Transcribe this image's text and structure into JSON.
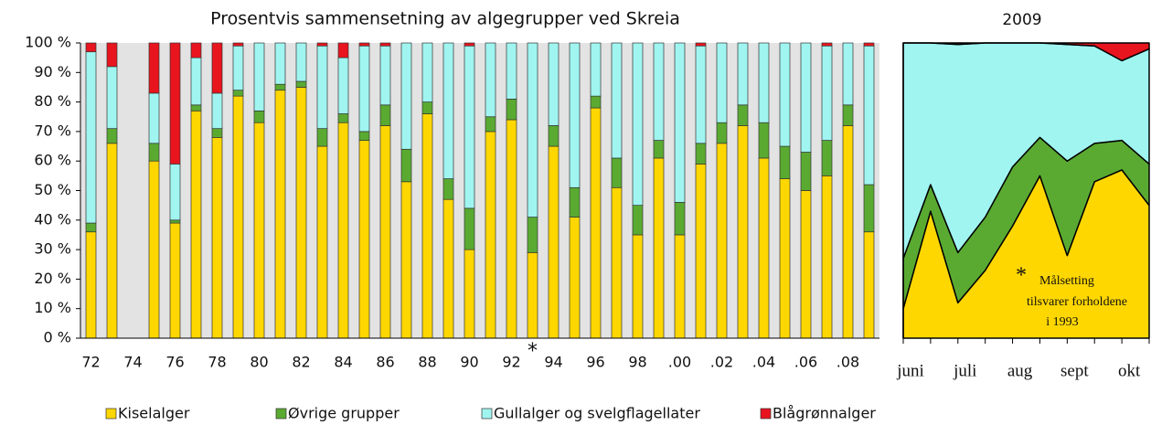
{
  "chart_data": [
    {
      "type": "stacked_bar",
      "title": "Prosentvis sammensetning av algegrupper ved Skreia",
      "categories": [
        "72",
        null,
        "74",
        null,
        "76",
        null,
        "78",
        null,
        "80",
        null,
        "82",
        null,
        "84",
        null,
        "86",
        null,
        "88",
        null,
        "90",
        null,
        "92",
        null,
        "94",
        null,
        "96",
        null,
        "98",
        null,
        ".00",
        null,
        ".02",
        null,
        ".04",
        null,
        ".06",
        null,
        ".08",
        null
      ],
      "series": [
        {
          "name": "Kiselalger",
          "color": "#ffd700",
          "values": [
            36,
            66,
            null,
            60,
            39,
            77,
            68,
            82,
            73,
            84,
            85,
            65,
            73,
            67,
            72,
            53,
            76,
            47,
            30,
            70,
            74,
            29,
            65,
            41,
            78,
            51,
            35,
            61,
            35,
            59,
            66,
            72,
            61,
            54,
            50,
            55,
            72,
            36
          ]
        },
        {
          "name": "Øvrige grupper",
          "color": "#5aaa32",
          "values": [
            3,
            5,
            null,
            6,
            1,
            2,
            3,
            2,
            4,
            2,
            2,
            6,
            3,
            3,
            7,
            11,
            4,
            7,
            14,
            5,
            7,
            12,
            7,
            10,
            4,
            10,
            10,
            6,
            11,
            7,
            7,
            7,
            12,
            11,
            13,
            12,
            7,
            16
          ]
        },
        {
          "name": "Gullalger og svelgflagellater",
          "color": "#a0f5f0",
          "values": [
            58,
            21,
            null,
            17,
            19,
            16,
            12,
            15,
            23,
            14,
            13,
            28,
            19,
            29,
            20,
            36,
            20,
            46,
            55,
            25,
            19,
            59,
            28,
            49,
            18,
            39,
            55,
            33,
            54,
            33,
            27,
            21,
            27,
            35,
            37,
            32,
            21,
            47
          ]
        },
        {
          "name": "Blågrønnalger",
          "color": "#e8141e",
          "values": [
            3,
            8,
            null,
            17,
            41,
            5,
            17,
            1,
            0,
            0,
            0,
            1,
            5,
            1,
            1,
            0,
            0,
            0,
            1,
            0,
            0,
            0,
            0,
            0,
            0,
            0,
            0,
            0,
            0,
            1,
            0,
            0,
            0,
            0,
            0,
            1,
            0,
            1
          ]
        }
      ],
      "ylim": [
        0,
        100
      ],
      "yticks": [
        {
          "value": 0,
          "label": "0 %"
        },
        {
          "value": 10,
          "label": "10 %"
        },
        {
          "value": 20,
          "label": "20 %"
        },
        {
          "value": 30,
          "label": "30 %"
        },
        {
          "value": 40,
          "label": "40 %"
        },
        {
          "value": 50,
          "label": "50 %"
        },
        {
          "value": 60,
          "label": "60 %"
        },
        {
          "value": 70,
          "label": "70 %"
        },
        {
          "value": 80,
          "label": "80 %"
        },
        {
          "value": 90,
          "label": "90 %"
        },
        {
          "value": 100,
          "label": "100 %"
        }
      ],
      "annotation": "*"
    },
    {
      "type": "stacked_area",
      "title": "2009",
      "categories": [
        "juni",
        null,
        "juli",
        null,
        "aug",
        null,
        "sept",
        null,
        "okt",
        null
      ],
      "series": [
        {
          "color": "#ffd700",
          "values": [
            10,
            43,
            12,
            23,
            38,
            55,
            28,
            53,
            57,
            45
          ]
        },
        {
          "color": "#5aaa32",
          "values": [
            17,
            9,
            17,
            18,
            20,
            13,
            32,
            13,
            10,
            14
          ]
        },
        {
          "color": "#a0f5f0",
          "values": [
            73,
            48,
            70.5,
            59,
            42,
            32,
            39.5,
            33,
            27,
            39
          ]
        },
        {
          "color": "#e8141e",
          "values": [
            0,
            0,
            0.5,
            0,
            0,
            0,
            0.5,
            1,
            6,
            2
          ]
        }
      ],
      "ylim": [
        0,
        100
      ],
      "annotation": [
        "*",
        "Målsetting",
        "tilsvarer forholdene",
        "i 1993"
      ]
    }
  ]
}
